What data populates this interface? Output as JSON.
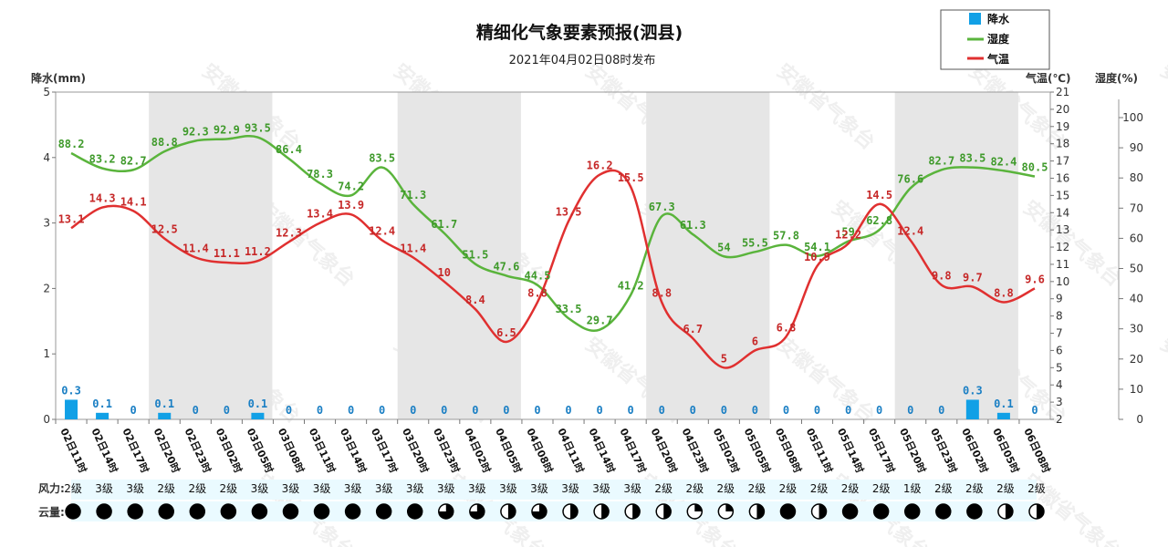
{
  "chart_data": {
    "type": "line",
    "title": "精细化气象要素预报(泗县)",
    "subtitle": "2021年04月02日08时发布",
    "watermark": "安徽省气象台",
    "left_axis_label": "降水(mm)",
    "right_axis_label_temp": "气温(℃)",
    "right_axis_label_hum": "湿度(%)",
    "prec_range": [
      0,
      5
    ],
    "prec_ticks": [
      0,
      1,
      2,
      3,
      4,
      5
    ],
    "temp_range": [
      2,
      21
    ],
    "temp_ticks": [
      2,
      3,
      4,
      5,
      6,
      7,
      8,
      9,
      10,
      11,
      12,
      13,
      14,
      15,
      16,
      17,
      18,
      19,
      20,
      21
    ],
    "hum_range": [
      0,
      100
    ],
    "hum_ticks": [
      0,
      10,
      20,
      30,
      40,
      50,
      60,
      70,
      80,
      90,
      100
    ],
    "legend": [
      {
        "name": "降水",
        "color": "#11a0e6",
        "kind": "box"
      },
      {
        "name": "湿度",
        "color": "#5ab43c",
        "kind": "line"
      },
      {
        "name": "气温",
        "color": "#e03030",
        "kind": "line"
      }
    ],
    "categories": [
      "02日11时",
      "02日14时",
      "02日17时",
      "02日20时",
      "02日23时",
      "03日02时",
      "03日05时",
      "03日08时",
      "03日11时",
      "03日14时",
      "03日17时",
      "03日20时",
      "03日23时",
      "04日02时",
      "04日05时",
      "04日08时",
      "04日11时",
      "04日14时",
      "04日17时",
      "04日20时",
      "04日23时",
      "05日02时",
      "05日05时",
      "05日08时",
      "05日11时",
      "05日14时",
      "05日17时",
      "05日20时",
      "05日23时",
      "06日02时",
      "06日05时",
      "06日08时"
    ],
    "night_bands": [
      [
        3,
        6
      ],
      [
        11,
        14
      ],
      [
        19,
        22
      ],
      [
        27,
        30
      ]
    ],
    "series": [
      {
        "name": "降水",
        "type": "bar",
        "values": [
          0.3,
          0.1,
          0,
          0.1,
          0,
          0,
          0.1,
          0,
          0,
          0,
          0,
          0,
          0,
          0,
          0,
          0,
          0,
          0,
          0,
          0,
          0,
          0,
          0,
          0,
          0,
          0,
          0,
          0,
          0,
          0.3,
          0.1,
          0
        ]
      },
      {
        "name": "湿度",
        "type": "line",
        "values": [
          88.2,
          83.2,
          82.7,
          88.8,
          92.3,
          92.9,
          93.5,
          86.4,
          78.3,
          74.2,
          83.5,
          71.3,
          61.7,
          51.5,
          47.6,
          44.5,
          33.5,
          29.7,
          41.2,
          67.3,
          61.3,
          54,
          55.5,
          57.8,
          54.1,
          59,
          62.8,
          76.6,
          82.7,
          83.5,
          82.4,
          80.5
        ]
      },
      {
        "name": "气温",
        "type": "line",
        "values": [
          13.1,
          14.3,
          14.1,
          12.5,
          11.4,
          11.1,
          11.2,
          12.3,
          13.4,
          13.9,
          12.4,
          11.4,
          10,
          8.4,
          6.5,
          8.8,
          13.5,
          16.2,
          15.5,
          8.8,
          6.7,
          5,
          6,
          6.8,
          10.9,
          12.2,
          14.5,
          12.4,
          9.8,
          9.7,
          8.8,
          9.6
        ]
      }
    ]
  },
  "rows": {
    "wind_label": "风力:",
    "cloud_label": "云量:",
    "wind": [
      "2级",
      "3级",
      "3级",
      "2级",
      "2级",
      "2级",
      "3级",
      "3级",
      "3级",
      "3级",
      "3级",
      "3级",
      "3级",
      "3级",
      "3级",
      "3级",
      "3级",
      "3级",
      "3级",
      "2级",
      "2级",
      "2级",
      "2级",
      "2级",
      "2级",
      "2级",
      "2级",
      "1级",
      "2级",
      "2级",
      "2级",
      "2级"
    ],
    "cloud": [
      1,
      1,
      1,
      1,
      1,
      1,
      1,
      1,
      1,
      1,
      1,
      1,
      0.75,
      0.75,
      0.5,
      0.75,
      0.5,
      0.5,
      0.5,
      0.5,
      0.25,
      0.25,
      0.5,
      1,
      0.5,
      1,
      1,
      1,
      1,
      1,
      0.5,
      0.5
    ]
  }
}
